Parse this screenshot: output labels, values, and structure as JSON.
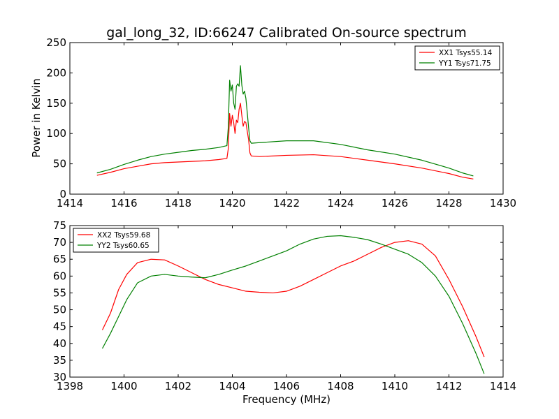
{
  "title": "gal_long_32, ID:66247 Calibrated On-source spectrum",
  "chart_data": [
    {
      "type": "line",
      "xlabel": "",
      "ylabel": "Power in Kelvin",
      "xlim": [
        1414,
        1430
      ],
      "ylim": [
        0,
        250
      ],
      "xticks": [
        1414,
        1416,
        1418,
        1420,
        1422,
        1424,
        1426,
        1428,
        1430
      ],
      "yticks": [
        0,
        50,
        100,
        150,
        200,
        250
      ],
      "grid": false,
      "legend_position": "top-right",
      "series": [
        {
          "name": "XX1 Tsys55.14",
          "color": "#ff0000",
          "points": [
            [
              1415.0,
              31
            ],
            [
              1415.5,
              36
            ],
            [
              1416.0,
              42
            ],
            [
              1416.5,
              46
            ],
            [
              1417.0,
              50
            ],
            [
              1417.5,
              52
            ],
            [
              1418.0,
              53
            ],
            [
              1418.5,
              54
            ],
            [
              1419.0,
              55
            ],
            [
              1419.5,
              57
            ],
            [
              1419.8,
              59
            ],
            [
              1419.85,
              75
            ],
            [
              1419.9,
              133
            ],
            [
              1419.95,
              112
            ],
            [
              1420.0,
              130
            ],
            [
              1420.05,
              118
            ],
            [
              1420.1,
              100
            ],
            [
              1420.15,
              122
            ],
            [
              1420.2,
              118
            ],
            [
              1420.25,
              140
            ],
            [
              1420.3,
              150
            ],
            [
              1420.35,
              130
            ],
            [
              1420.4,
              112
            ],
            [
              1420.45,
              120
            ],
            [
              1420.5,
              118
            ],
            [
              1420.55,
              104
            ],
            [
              1420.6,
              90
            ],
            [
              1420.65,
              68
            ],
            [
              1420.7,
              63
            ],
            [
              1421.0,
              62
            ],
            [
              1422.0,
              64
            ],
            [
              1423.0,
              65
            ],
            [
              1424.0,
              62
            ],
            [
              1425.0,
              56
            ],
            [
              1426.0,
              50
            ],
            [
              1427.0,
              43
            ],
            [
              1428.0,
              34
            ],
            [
              1428.5,
              28
            ],
            [
              1428.9,
              25
            ]
          ]
        },
        {
          "name": "YY1 Tsys71.75",
          "color": "#008000",
          "points": [
            [
              1415.0,
              35
            ],
            [
              1415.5,
              41
            ],
            [
              1416.0,
              49
            ],
            [
              1416.5,
              56
            ],
            [
              1417.0,
              62
            ],
            [
              1417.5,
              66
            ],
            [
              1418.0,
              69
            ],
            [
              1418.5,
              72
            ],
            [
              1419.0,
              74
            ],
            [
              1419.5,
              77
            ],
            [
              1419.8,
              80
            ],
            [
              1419.85,
              110
            ],
            [
              1419.9,
              188
            ],
            [
              1419.95,
              170
            ],
            [
              1420.0,
              180
            ],
            [
              1420.05,
              150
            ],
            [
              1420.1,
              140
            ],
            [
              1420.15,
              178
            ],
            [
              1420.2,
              182
            ],
            [
              1420.25,
              178
            ],
            [
              1420.3,
              212
            ],
            [
              1420.35,
              180
            ],
            [
              1420.4,
              165
            ],
            [
              1420.45,
              170
            ],
            [
              1420.5,
              158
            ],
            [
              1420.55,
              135
            ],
            [
              1420.6,
              110
            ],
            [
              1420.65,
              88
            ],
            [
              1420.7,
              84
            ],
            [
              1421.0,
              85
            ],
            [
              1422.0,
              88
            ],
            [
              1423.0,
              88
            ],
            [
              1424.0,
              82
            ],
            [
              1425.0,
              73
            ],
            [
              1426.0,
              66
            ],
            [
              1427.0,
              56
            ],
            [
              1428.0,
              43
            ],
            [
              1428.5,
              35
            ],
            [
              1428.9,
              30
            ]
          ]
        }
      ]
    },
    {
      "type": "line",
      "xlabel": "Frequency (MHz)",
      "ylabel": "",
      "xlim": [
        1398,
        1414
      ],
      "ylim": [
        30,
        75
      ],
      "xticks": [
        1398,
        1400,
        1402,
        1404,
        1406,
        1408,
        1410,
        1412,
        1414
      ],
      "yticks": [
        30,
        35,
        40,
        45,
        50,
        55,
        60,
        65,
        70,
        75
      ],
      "grid": false,
      "legend_position": "top-left",
      "series": [
        {
          "name": "XX2 Tsys59.68",
          "color": "#ff0000",
          "points": [
            [
              1399.2,
              44
            ],
            [
              1399.5,
              49
            ],
            [
              1399.8,
              56
            ],
            [
              1400.1,
              60.5
            ],
            [
              1400.5,
              64
            ],
            [
              1401.0,
              65
            ],
            [
              1401.5,
              64.8
            ],
            [
              1402.0,
              63
            ],
            [
              1402.5,
              61
            ],
            [
              1403.0,
              59
            ],
            [
              1403.5,
              57.5
            ],
            [
              1404.0,
              56.5
            ],
            [
              1404.5,
              55.5
            ],
            [
              1405.0,
              55.2
            ],
            [
              1405.5,
              55
            ],
            [
              1406.0,
              55.5
            ],
            [
              1406.5,
              57
            ],
            [
              1407.0,
              59
            ],
            [
              1407.5,
              61
            ],
            [
              1408.0,
              63
            ],
            [
              1408.5,
              64.5
            ],
            [
              1409.0,
              66.5
            ],
            [
              1409.5,
              68.5
            ],
            [
              1410.0,
              70
            ],
            [
              1410.5,
              70.5
            ],
            [
              1411.0,
              69.5
            ],
            [
              1411.5,
              66
            ],
            [
              1412.0,
              59
            ],
            [
              1412.5,
              51
            ],
            [
              1413.0,
              42
            ],
            [
              1413.3,
              36
            ]
          ]
        },
        {
          "name": "YY2 Tsys60.65",
          "color": "#008000",
          "points": [
            [
              1399.2,
              38.5
            ],
            [
              1399.5,
              43
            ],
            [
              1399.8,
              48
            ],
            [
              1400.1,
              53
            ],
            [
              1400.5,
              58
            ],
            [
              1401.0,
              60
            ],
            [
              1401.5,
              60.5
            ],
            [
              1402.0,
              60
            ],
            [
              1402.5,
              59.7
            ],
            [
              1403.0,
              59.5
            ],
            [
              1403.5,
              60.5
            ],
            [
              1404.0,
              61.8
            ],
            [
              1404.5,
              63
            ],
            [
              1405.0,
              64.5
            ],
            [
              1405.5,
              66
            ],
            [
              1406.0,
              67.5
            ],
            [
              1406.5,
              69.5
            ],
            [
              1407.0,
              71
            ],
            [
              1407.5,
              71.8
            ],
            [
              1408.0,
              72
            ],
            [
              1408.5,
              71.5
            ],
            [
              1409.0,
              70.8
            ],
            [
              1409.5,
              69.5
            ],
            [
              1410.0,
              68
            ],
            [
              1410.5,
              66.5
            ],
            [
              1411.0,
              64
            ],
            [
              1411.5,
              60
            ],
            [
              1412.0,
              54
            ],
            [
              1412.5,
              46
            ],
            [
              1413.0,
              37
            ],
            [
              1413.3,
              31
            ]
          ]
        }
      ]
    }
  ]
}
